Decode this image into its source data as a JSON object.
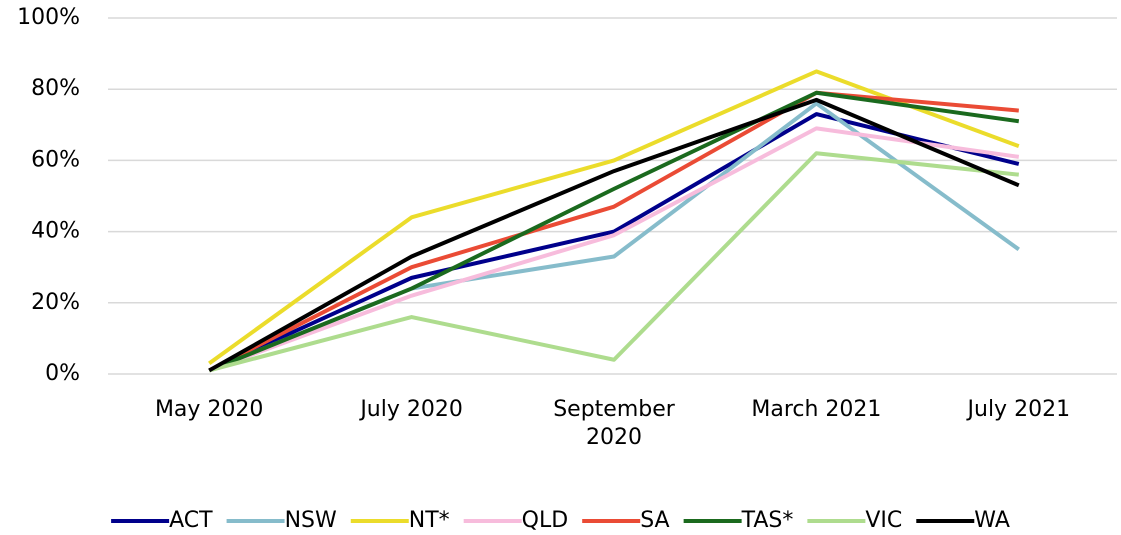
{
  "chart_data": {
    "type": "line",
    "categories": [
      "May 2020",
      "July 2020",
      "September 2020",
      "March 2021",
      "July 2021"
    ],
    "series": [
      {
        "name": "ACT",
        "color": "#00008b",
        "values": [
          1,
          27,
          40,
          73,
          59
        ]
      },
      {
        "name": "NSW",
        "color": "#86bccb",
        "values": [
          1,
          24,
          33,
          76,
          35
        ]
      },
      {
        "name": "NT*",
        "color": "#ebdc2b",
        "values": [
          3,
          44,
          60,
          85,
          64
        ]
      },
      {
        "name": "QLD",
        "color": "#f7bcdc",
        "values": [
          1,
          22,
          39,
          69,
          61
        ]
      },
      {
        "name": "SA",
        "color": "#ea4b35",
        "values": [
          1,
          30,
          47,
          79,
          74
        ]
      },
      {
        "name": "TAS*",
        "color": "#1b6a1e",
        "values": [
          1,
          24,
          52,
          79,
          71
        ]
      },
      {
        "name": "VIC",
        "color": "#aedc8e",
        "values": [
          1,
          16,
          4,
          62,
          56
        ]
      },
      {
        "name": "WA",
        "color": "#000000",
        "values": [
          1,
          33,
          57,
          77,
          53
        ]
      }
    ],
    "ylim": [
      0,
      100
    ],
    "yticks": [
      {
        "value": 0,
        "label": "0%"
      },
      {
        "value": 20,
        "label": "20%"
      },
      {
        "value": 40,
        "label": "40%"
      },
      {
        "value": 60,
        "label": "60%"
      },
      {
        "value": 80,
        "label": "80%"
      },
      {
        "value": 100,
        "label": "100%"
      }
    ],
    "grid": true,
    "legend": "bottom"
  }
}
